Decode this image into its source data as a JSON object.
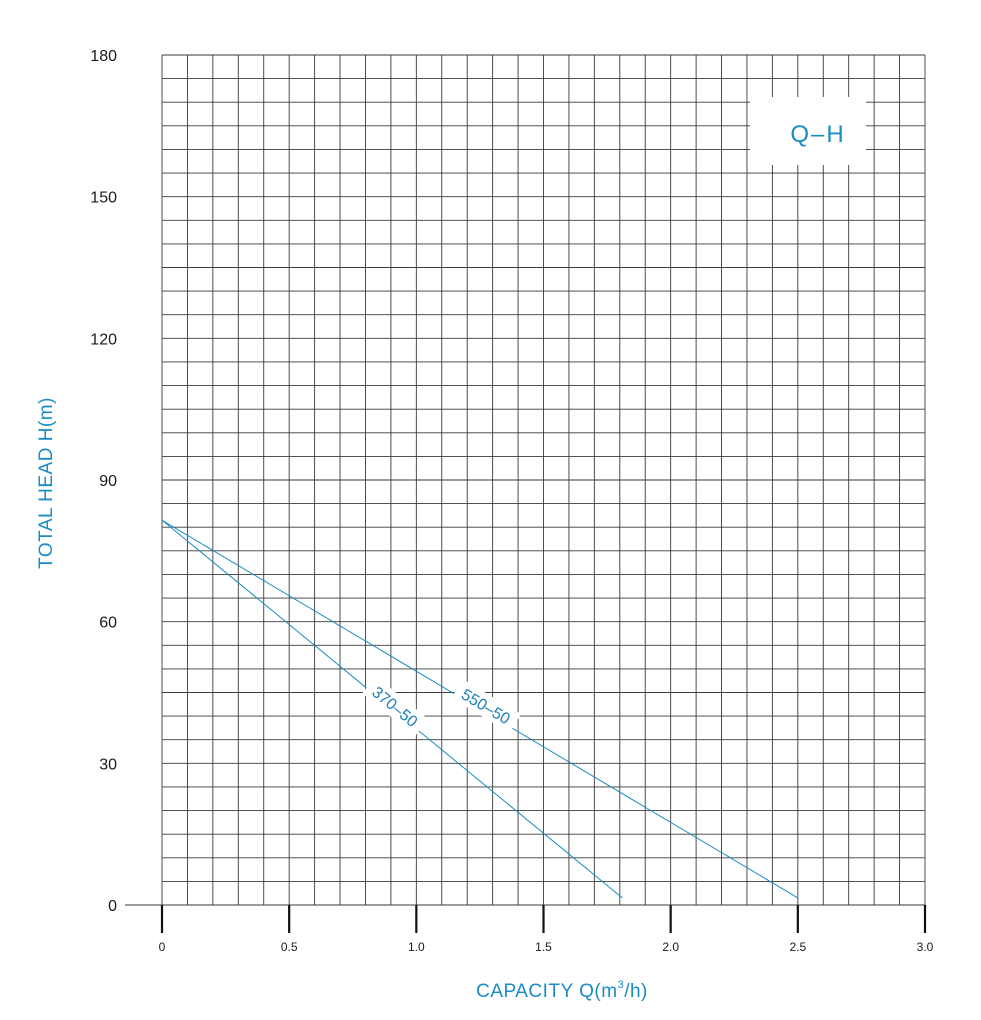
{
  "chart_data": {
    "type": "line",
    "xlim": [
      0,
      3.0
    ],
    "ylim": [
      0,
      180
    ],
    "grid": true,
    "xlabel": "CAPACITY Q(m",
    "xlabel_sup": "3",
    "xlabel_tail": "/h)",
    "ylabel": "TOTAL HEAD H(m)",
    "legend_label": "Q–H",
    "legend_placement": "top-right",
    "x_ticks": [
      "0",
      "0.5",
      "1.0",
      "1.5",
      "2.0",
      "2.5",
      "3.0"
    ],
    "y_ticks": [
      "0",
      "30",
      "60",
      "90",
      "120",
      "150",
      "180"
    ],
    "series": [
      {
        "name": "550-50",
        "label": "550–50",
        "x": [
          0,
          2.5
        ],
        "y": [
          81.5,
          1.5
        ]
      },
      {
        "name": "370-50",
        "label": "370–50",
        "x": [
          0,
          1.81
        ],
        "y": [
          81.5,
          1.5
        ]
      }
    ],
    "colors": {
      "curve": "#1a8cc4",
      "label": "#1a8cc4",
      "grid": "#3a3a3a"
    }
  }
}
